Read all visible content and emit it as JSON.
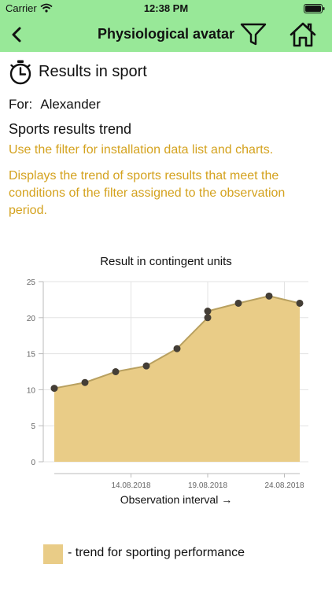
{
  "status_bar": {
    "carrier": "Carrier",
    "time": "12:38 PM",
    "wifi_icon": "wifi-icon",
    "battery_icon": "battery-icon"
  },
  "nav": {
    "title": "Physiological avatar",
    "back_icon": "chevron-left-icon",
    "filter_icon": "filter-icon",
    "home_icon": "home-icon",
    "background": "#98e898"
  },
  "header": {
    "icon": "stopwatch-icon",
    "title": "Results in sport"
  },
  "for_line": {
    "label": "For:",
    "name": "Alexander"
  },
  "trend": {
    "title": "Sports results trend",
    "hint": "Use the filter for installation data list and charts.",
    "description": "Displays the trend of sports results that meet the conditions of the filter assigned to the observation period.",
    "accent_color": "#d4a21e"
  },
  "chart_data": {
    "type": "area",
    "title": "Result in contingent units",
    "xlabel": "Observation interval →",
    "ylabel": "",
    "ylim": [
      0,
      25
    ],
    "yticks": [
      "0",
      "5",
      "10",
      "15",
      "20",
      "25"
    ],
    "xticks": [
      "14.08.2018",
      "19.08.2018",
      "24.08.2018"
    ],
    "xlim": [
      "2018-08-09",
      "2018-08-25"
    ],
    "grid": true,
    "fill_color": "#e9cc87",
    "line_color": "#b8a060",
    "point_color": "#443e36",
    "series": [
      {
        "name": "",
        "points": [
          {
            "x": "2018-08-09",
            "y": 10.2
          },
          {
            "x": "2018-08-11",
            "y": 11.0
          },
          {
            "x": "2018-08-13",
            "y": 12.5
          },
          {
            "x": "2018-08-15",
            "y": 13.3
          },
          {
            "x": "2018-08-17",
            "y": 15.7
          },
          {
            "x": "2018-08-19",
            "y": 20.0
          },
          {
            "x": "2018-08-19",
            "y": 20.9
          },
          {
            "x": "2018-08-21",
            "y": 22.0
          },
          {
            "x": "2018-08-23",
            "y": 23.0
          },
          {
            "x": "2018-08-25",
            "y": 22.0
          }
        ]
      }
    ]
  },
  "legend": {
    "label": "- trend for sporting performance",
    "swatch_color": "#e9cc87"
  }
}
